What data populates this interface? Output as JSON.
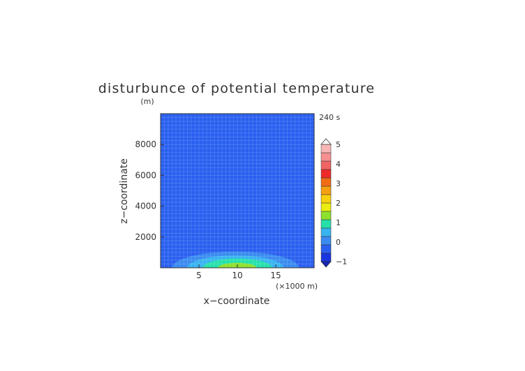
{
  "chart_data": {
    "type": "heatmap",
    "title": "disturbunce of potential temperature",
    "time_label": "240 s",
    "xlabel": "x−coordinate",
    "ylabel": "z−coordinate",
    "y_unit": "(m)",
    "x_unit": "(×1000 m)",
    "xlim": [
      0,
      20
    ],
    "ylim": [
      0,
      10000
    ],
    "x_ticks": [
      5,
      10,
      15
    ],
    "y_ticks": [
      2000,
      4000,
      6000,
      8000
    ],
    "grid": true,
    "field": {
      "background_value": -0.25,
      "upper_region_value": -0.5,
      "upper_region_x_range": [
        4,
        16
      ],
      "upper_region_bottom": 1800,
      "upper_region_top": 8200,
      "bubble_center_x": 10,
      "bubble_center_z": 0,
      "bubble_max_value": 2.0,
      "bubble_contours": [
        {
          "value": 0.25,
          "x_range": [
            1.5,
            18.0
          ],
          "top": 1050
        },
        {
          "value": 0.75,
          "x_range": [
            3.5,
            16.0
          ],
          "top": 800
        },
        {
          "value": 1.25,
          "x_range": [
            5.5,
            14.5
          ],
          "top": 600
        },
        {
          "value": 1.75,
          "x_range": [
            7.5,
            12.5
          ],
          "top": 320
        }
      ]
    },
    "colorbar": {
      "min": -1,
      "max": 5,
      "step": 0.5,
      "labels": [
        "5",
        "4",
        "3",
        "2",
        "1",
        "0",
        "−1"
      ],
      "colors": [
        "#1a35e0",
        "#2a60f0",
        "#3a8bf0",
        "#38b4f0",
        "#26e0aa",
        "#8ee02e",
        "#ecec10",
        "#f8d010",
        "#f4a012",
        "#f06c16",
        "#ee2a2a",
        "#f06464",
        "#f49090",
        "#f7b5b5"
      ]
    }
  }
}
